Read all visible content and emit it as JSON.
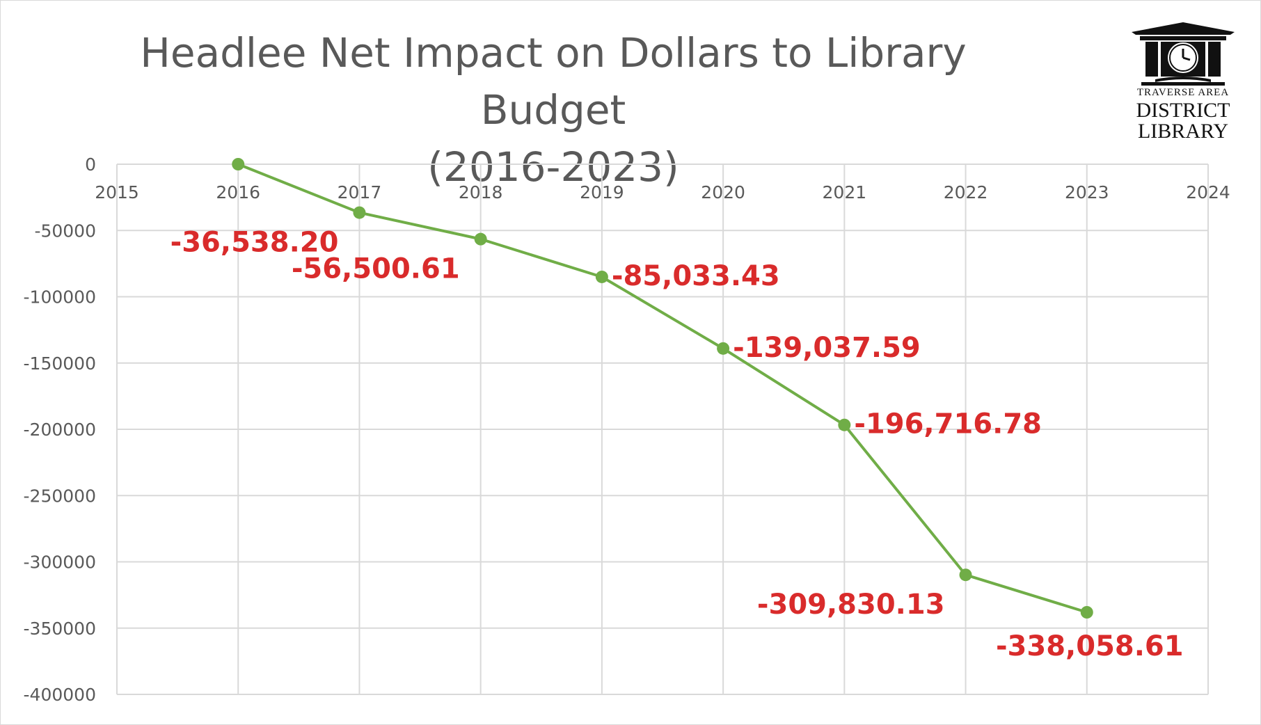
{
  "chart_data": {
    "type": "scatter",
    "title_line1": "Headlee Net Impact on Dollars to Library Budget",
    "title_line2": "(2016-2023)",
    "xlabel": "",
    "ylabel": "",
    "xlim": [
      2015,
      2024
    ],
    "ylim": [
      -400000,
      0
    ],
    "x_ticks": [
      2015,
      2016,
      2017,
      2018,
      2019,
      2020,
      2021,
      2022,
      2023,
      2024
    ],
    "y_ticks": [
      0,
      -50000,
      -100000,
      -150000,
      -200000,
      -250000,
      -300000,
      -350000,
      -400000
    ],
    "grid": true,
    "legend": "none",
    "series": [
      {
        "x": [
          2016,
          2017,
          2018,
          2019,
          2020,
          2021,
          2022,
          2023
        ],
        "y": [
          0,
          -36538.2,
          -56500.61,
          -85033.43,
          -139037.59,
          -196716.78,
          -309830.13,
          -338058.61
        ],
        "labels": [
          "",
          "-36,538.20",
          "-56,500.61",
          "-85,033.43",
          "-139,037.59",
          "-196,716.78",
          "-309,830.13",
          "-338,058.61"
        ],
        "label_positions": [
          "none",
          "left-below",
          "left-below",
          "right",
          "right",
          "right",
          "left-below",
          "below"
        ],
        "color": "#70ad47"
      }
    ],
    "label_color": "#d92b2b"
  },
  "logo": {
    "line1": "TRAVERSE AREA",
    "line2": "DISTRICT",
    "line3": "LIBRARY"
  }
}
